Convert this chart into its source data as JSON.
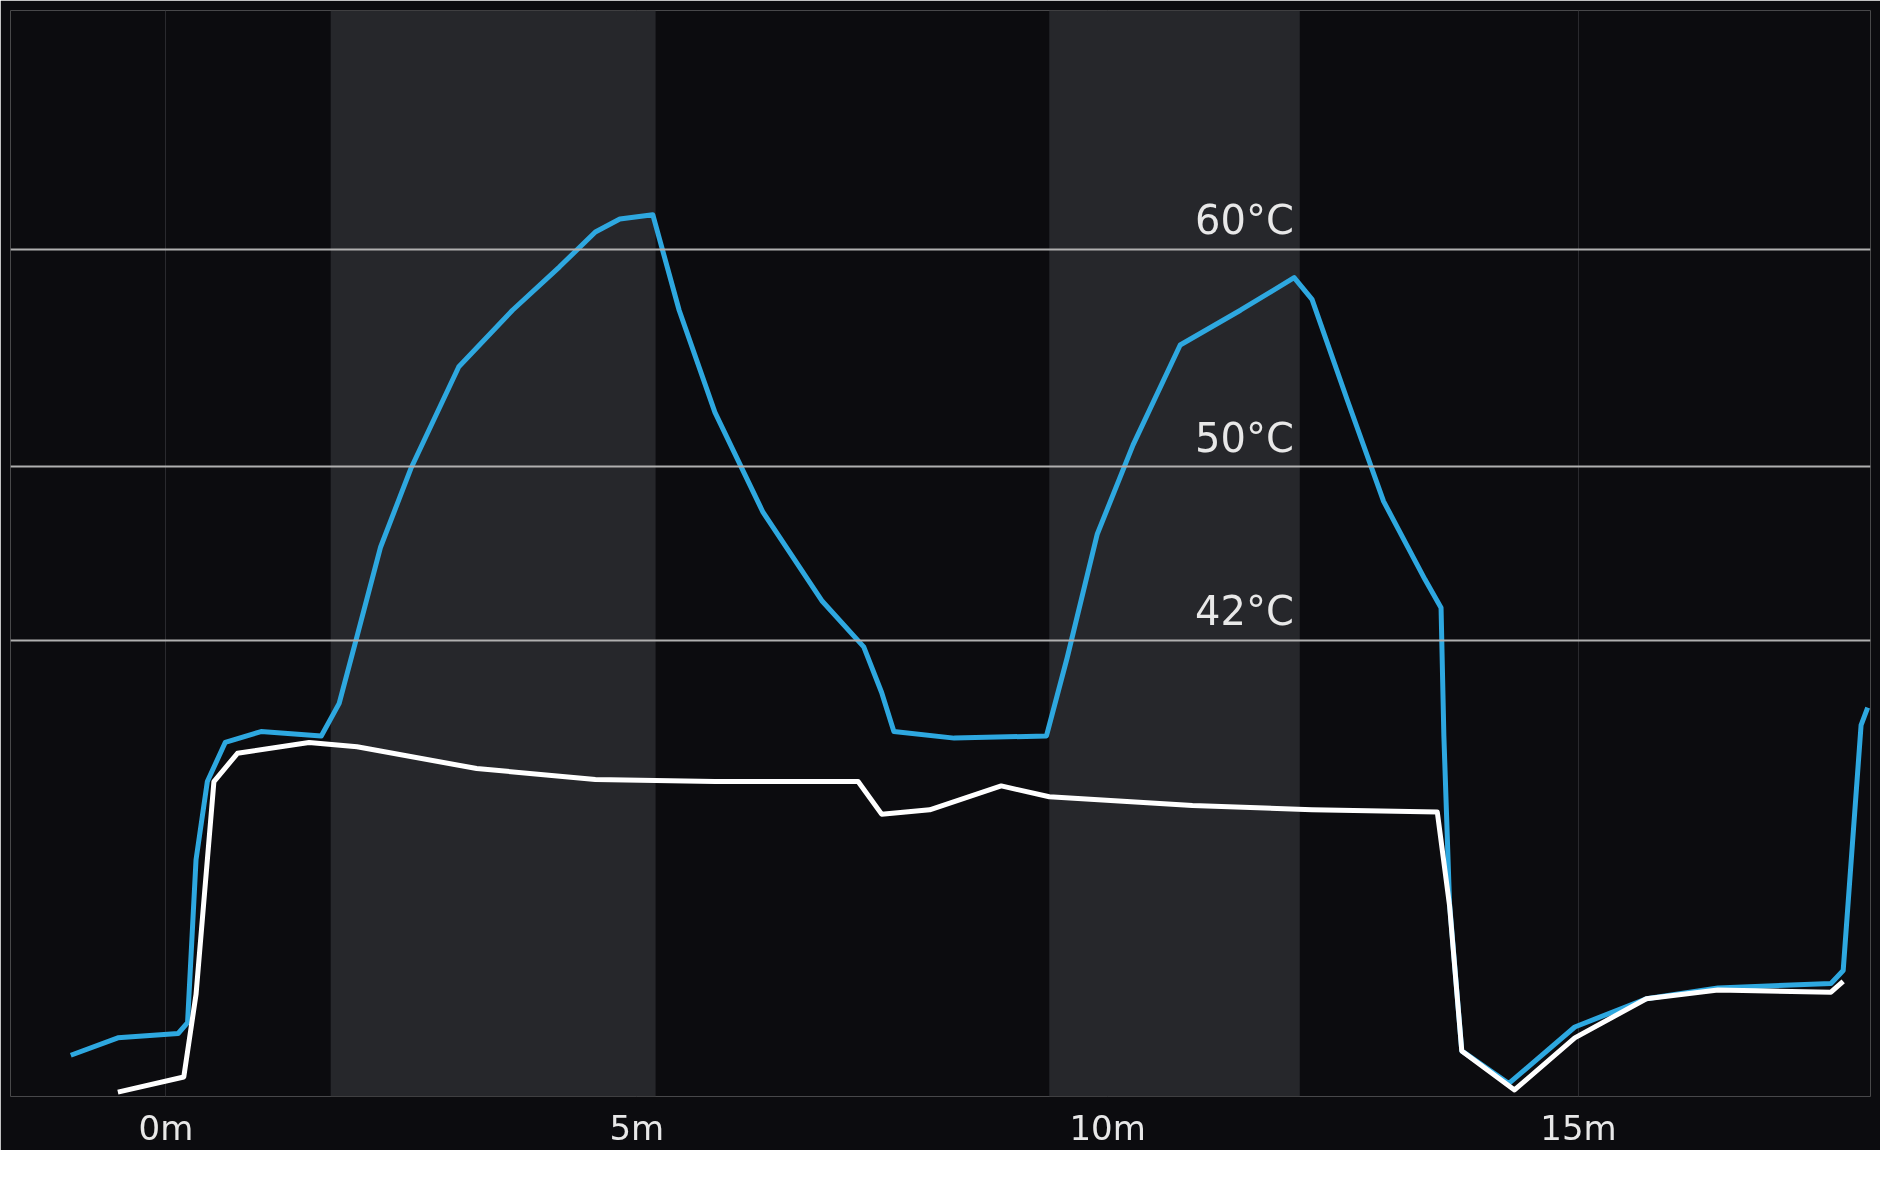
{
  "chart_data": {
    "type": "line",
    "xlim": [
      -1.65,
      18.1
    ],
    "ylim": [
      21,
      71
    ],
    "xticks": [
      {
        "value": 0,
        "label": "0m"
      },
      {
        "value": 5,
        "label": "5m"
      },
      {
        "value": 10,
        "label": "10m"
      },
      {
        "value": 15,
        "label": "15m"
      }
    ],
    "tick_labels": "x",
    "grid": "x",
    "line_style": "solid",
    "marker": "none",
    "ref_lines": [
      {
        "axis": "y",
        "value": 60,
        "label": "60°C",
        "color": "#b0b0b0"
      },
      {
        "axis": "y",
        "value": 50,
        "label": "50°C",
        "color": "#b0b0b0"
      },
      {
        "axis": "y",
        "value": 42,
        "label": "42°C",
        "color": "#b0b0b0"
      }
    ],
    "bands": [
      {
        "axis": "x",
        "from": 1.75,
        "to": 5.2,
        "color": "#26272b"
      },
      {
        "axis": "x",
        "from": 9.38,
        "to": 12.04,
        "color": "#26272b"
      }
    ],
    "series": [
      {
        "color": "#2ea8e0",
        "x": [
          -1.01,
          -0.51,
          0.13,
          0.23,
          0.32,
          0.44,
          0.63,
          1.01,
          1.65,
          1.84,
          2.03,
          2.28,
          2.6,
          3.11,
          3.68,
          4.18,
          4.56,
          4.82,
          5.17,
          5.45,
          5.83,
          6.34,
          6.97,
          7.41,
          7.6,
          7.73,
          8.37,
          9.35,
          9.57,
          9.89,
          10.27,
          10.77,
          11.41,
          11.98,
          12.17,
          12.55,
          12.93,
          13.37,
          13.54,
          13.57,
          13.63,
          13.76,
          14.26,
          14.96,
          15.72,
          16.48,
          17.68,
          17.81,
          18.0,
          18.07
        ],
        "values": [
          22.9,
          23.7,
          23.9,
          24.4,
          31.9,
          35.5,
          37.3,
          37.8,
          37.6,
          39.1,
          42.2,
          46.3,
          49.9,
          54.6,
          57.2,
          59.2,
          60.8,
          61.4,
          61.6,
          57.2,
          52.5,
          47.9,
          43.8,
          41.7,
          39.6,
          37.8,
          37.5,
          37.6,
          41.2,
          46.9,
          51.0,
          55.6,
          57.2,
          58.7,
          57.7,
          53.0,
          48.4,
          44.8,
          43.5,
          37.6,
          29.9,
          23.1,
          21.6,
          24.2,
          25.5,
          26.0,
          26.2,
          26.8,
          38.1,
          38.9
        ]
      },
      {
        "color": "#ffffff",
        "x": [
          -0.51,
          0.19,
          0.32,
          0.51,
          0.76,
          1.52,
          2.03,
          3.3,
          4.56,
          5.83,
          7.35,
          7.6,
          8.11,
          8.87,
          9.38,
          10.9,
          12.17,
          13.5,
          13.63,
          13.76,
          14.32,
          14.96,
          15.72,
          16.48,
          17.68,
          17.81
        ],
        "values": [
          21.2,
          21.9,
          25.7,
          35.5,
          36.8,
          37.3,
          37.1,
          36.1,
          35.6,
          35.5,
          35.5,
          34.0,
          34.2,
          35.3,
          34.8,
          34.4,
          34.2,
          34.1,
          29.8,
          23.1,
          21.3,
          23.7,
          25.5,
          25.9,
          25.8,
          26.3
        ]
      }
    ]
  }
}
